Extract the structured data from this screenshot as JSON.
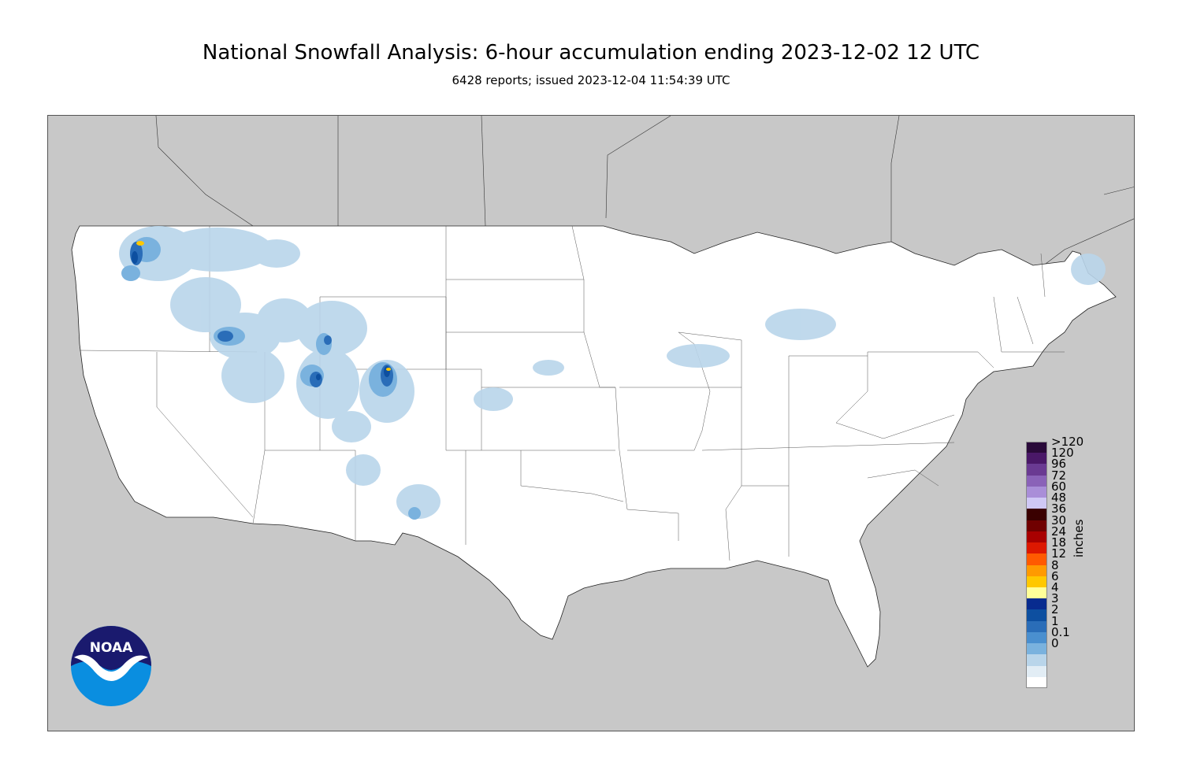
{
  "header": {
    "title": "National Snowfall Analysis: 6-hour accumulation ending 2023-12-02 12 UTC",
    "subtitle": "6428 reports; issued 2023-12-04 11:54:39 UTC"
  },
  "legend": {
    "unit": "inches",
    "bins": [
      {
        "label": ">120",
        "color": "#2a0a3a"
      },
      {
        "label": "120",
        "color": "#4a1868"
      },
      {
        "label": "96",
        "color": "#6a3a92"
      },
      {
        "label": "72",
        "color": "#8a62b8"
      },
      {
        "label": "60",
        "color": "#a98ed8"
      },
      {
        "label": "48",
        "color": "#cfc8f5"
      },
      {
        "label": "36",
        "color": "#3a0000"
      },
      {
        "label": "30",
        "color": "#700000"
      },
      {
        "label": "24",
        "color": "#a80000"
      },
      {
        "label": "18",
        "color": "#dc1800"
      },
      {
        "label": "12",
        "color": "#ff5a00"
      },
      {
        "label": "8",
        "color": "#ff9a00"
      },
      {
        "label": "6",
        "color": "#ffc800"
      },
      {
        "label": "4",
        "color": "#ffff99"
      },
      {
        "label": "3",
        "color": "#082b8f"
      },
      {
        "label": "2",
        "color": "#0d4fa0"
      },
      {
        "label": "1",
        "color": "#2a6db8"
      },
      {
        "label": "0.1",
        "color": "#4a8fcf"
      },
      {
        "label": "0",
        "color": "#7ab2de"
      },
      {
        "label": "",
        "color": "#b9d5ea"
      },
      {
        "label": "",
        "color": "#e2edf5"
      },
      {
        "label": "",
        "color": "#ffffff"
      }
    ]
  },
  "logo": {
    "text": "NOAA",
    "colors": {
      "top": "#1a1a6e",
      "bottom": "#0a8ee0"
    }
  },
  "map": {
    "background_color": "#c8c8c8",
    "land_color": "#ffffff",
    "snow_colors": [
      "#b9d5ea",
      "#7ab2de",
      "#4a8fcf",
      "#2a6db8",
      "#0d4fa0",
      "#082b8f",
      "#ffff99",
      "#ffc800"
    ]
  }
}
